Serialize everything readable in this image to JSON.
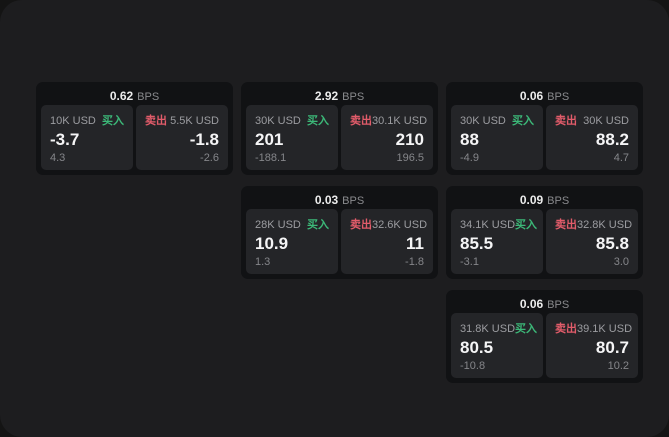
{
  "labels": {
    "buy": "买入",
    "sell": "卖出",
    "bps_unit": "BPS"
  },
  "colors": {
    "buy_green": "#3cb878",
    "sell_red": "#e25c6a",
    "card_bg": "#111214",
    "panel_bg": "#242528",
    "page_bg": "#1d1d1f"
  },
  "cards": [
    {
      "col": 1,
      "row": 1,
      "bps": "0.62",
      "buy": {
        "amount": "10K USD",
        "value": "-3.7",
        "delta": "4.3"
      },
      "sell": {
        "amount": "5.5K USD",
        "value": "-1.8",
        "delta": "-2.6"
      }
    },
    {
      "col": 2,
      "row": 1,
      "bps": "2.92",
      "buy": {
        "amount": "30K USD",
        "value": "201",
        "delta": "-188.1"
      },
      "sell": {
        "amount": "30.1K USD",
        "value": "210",
        "delta": "196.5"
      }
    },
    {
      "col": 3,
      "row": 1,
      "bps": "0.06",
      "buy": {
        "amount": "30K USD",
        "value": "88",
        "delta": "-4.9"
      },
      "sell": {
        "amount": "30K USD",
        "value": "88.2",
        "delta": "4.7"
      }
    },
    {
      "col": 2,
      "row": 2,
      "bps": "0.03",
      "buy": {
        "amount": "28K USD",
        "value": "10.9",
        "delta": "1.3"
      },
      "sell": {
        "amount": "32.6K USD",
        "value": "11",
        "delta": "-1.8"
      }
    },
    {
      "col": 3,
      "row": 2,
      "bps": "0.09",
      "buy": {
        "amount": "34.1K USD",
        "value": "85.5",
        "delta": "-3.1"
      },
      "sell": {
        "amount": "32.8K USD",
        "value": "85.8",
        "delta": "3.0"
      }
    },
    {
      "col": 3,
      "row": 3,
      "bps": "0.06",
      "buy": {
        "amount": "31.8K USD",
        "value": "80.5",
        "delta": "-10.8"
      },
      "sell": {
        "amount": "39.1K USD",
        "value": "80.7",
        "delta": "10.2"
      }
    }
  ]
}
